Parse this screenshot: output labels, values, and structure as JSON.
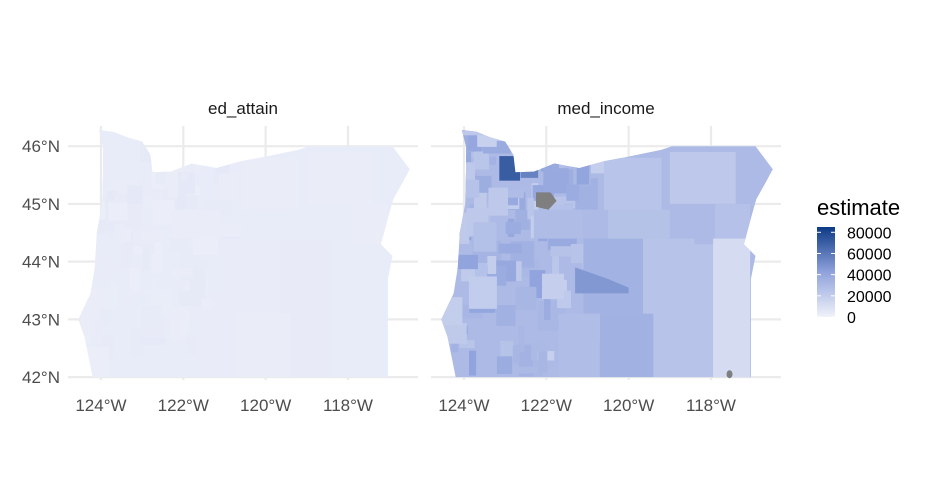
{
  "chart_data": {
    "type": "choropleth",
    "region": "Oregon",
    "panels": [
      {
        "name": "ed_attain",
        "fill_level": 0.04,
        "variation": "very low"
      },
      {
        "name": "med_income",
        "fill_level": 0.35,
        "variation": "high",
        "missing_areas": true
      }
    ],
    "x_ticks": [
      "124°W",
      "122°W",
      "120°W",
      "118°W"
    ],
    "x_tick_values": [
      -124,
      -122,
      -120,
      -118
    ],
    "y_ticks": [
      "42°N",
      "43°N",
      "44°N",
      "45°N",
      "46°N"
    ],
    "y_tick_values": [
      42,
      43,
      44,
      45,
      46
    ],
    "xlim": [
      -124.8,
      -116.3
    ],
    "ylim": [
      41.95,
      46.35
    ],
    "legend": {
      "title": "estimate",
      "labels": [
        "80000",
        "60000",
        "40000",
        "20000",
        "0"
      ],
      "values": [
        80000,
        60000,
        40000,
        20000,
        0
      ],
      "range": [
        0,
        85000
      ],
      "low_color": "#f0f2fa",
      "high_color": "#0d3a86"
    },
    "na_color": "#7f7f7f",
    "grid": true
  }
}
